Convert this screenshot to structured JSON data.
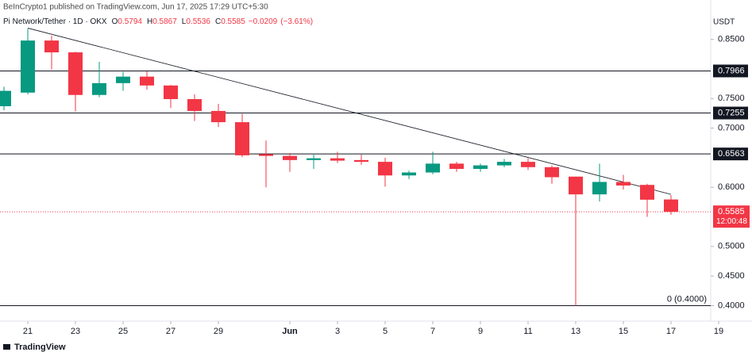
{
  "publisher": "BeInCrypto1 published on TradingView.com, Jun 17, 2025 17:29 UTC+5:30",
  "logo": "TradingView",
  "chart_data": {
    "type": "candlestick",
    "title": "Pi Network/Tether · 1D · OKX",
    "header_letters": [
      "O",
      "H",
      "L",
      "C"
    ],
    "header_values": [
      0.5794,
      0.5867,
      0.5536,
      0.5585
    ],
    "header_change": {
      "value": -0.0209,
      "label": "−0.0209"
    },
    "header_change_pct": {
      "value": -3.61,
      "label": "(−3.61%)"
    },
    "currency": "USDT",
    "x": [
      "2025-05-20",
      "2025-05-21",
      "2025-05-22",
      "2025-05-23",
      "2025-05-24",
      "2025-05-25",
      "2025-05-26",
      "2025-05-27",
      "2025-05-28",
      "2025-05-29",
      "2025-05-30",
      "2025-05-31",
      "2025-06-01",
      "2025-06-02",
      "2025-06-03",
      "2025-06-04",
      "2025-06-05",
      "2025-06-06",
      "2025-06-07",
      "2025-06-08",
      "2025-06-09",
      "2025-06-10",
      "2025-06-11",
      "2025-06-12",
      "2025-06-13",
      "2025-06-14",
      "2025-06-15",
      "2025-06-16",
      "2025-06-17"
    ],
    "open": [
      0.737,
      0.76,
      0.848,
      0.828,
      0.756,
      0.776,
      0.787,
      0.772,
      0.749,
      0.729,
      0.71,
      0.656,
      0.653,
      0.646,
      0.649,
      0.646,
      0.643,
      0.62,
      0.625,
      0.64,
      0.631,
      0.637,
      0.643,
      0.634,
      0.618,
      0.588,
      0.609,
      0.604,
      0.5794
    ],
    "high": [
      0.77,
      0.868,
      0.856,
      0.829,
      0.812,
      0.795,
      0.796,
      0.773,
      0.757,
      0.741,
      0.724,
      0.679,
      0.658,
      0.655,
      0.66,
      0.655,
      0.65,
      0.628,
      0.66,
      0.643,
      0.64,
      0.648,
      0.649,
      0.637,
      0.618,
      0.64,
      0.621,
      0.606,
      0.5867
    ],
    "low": [
      0.73,
      0.757,
      0.799,
      0.728,
      0.752,
      0.763,
      0.765,
      0.734,
      0.712,
      0.702,
      0.651,
      0.6,
      0.626,
      0.631,
      0.641,
      0.638,
      0.601,
      0.614,
      0.622,
      0.626,
      0.626,
      0.634,
      0.629,
      0.606,
      0.4,
      0.576,
      0.596,
      0.55,
      0.5536
    ],
    "close": [
      0.763,
      0.848,
      0.828,
      0.756,
      0.776,
      0.787,
      0.772,
      0.749,
      0.729,
      0.71,
      0.654,
      0.653,
      0.646,
      0.649,
      0.645,
      0.643,
      0.62,
      0.625,
      0.64,
      0.631,
      0.637,
      0.643,
      0.634,
      0.617,
      0.588,
      0.609,
      0.603,
      0.579,
      0.5585
    ],
    "up_color": "#089981",
    "down_color": "#f23645",
    "ylim": [
      0.3738,
      0.9165
    ],
    "yticks": [
      {
        "value": 0.85,
        "label": "0.8500"
      },
      {
        "value": 0.75,
        "label": "0.7500"
      },
      {
        "value": 0.7,
        "label": "0.7000"
      },
      {
        "value": 0.6,
        "label": "0.6000"
      },
      {
        "value": 0.5,
        "label": "0.5000"
      },
      {
        "value": 0.45,
        "label": "0.4500"
      },
      {
        "value": 0.4,
        "label": "0.4000"
      }
    ],
    "xlim": [
      "2025-05-20",
      "2025-06-20"
    ],
    "xticks": [
      {
        "value": "2025-05-21",
        "label": "21"
      },
      {
        "value": "2025-05-23",
        "label": "23"
      },
      {
        "value": "2025-05-25",
        "label": "25"
      },
      {
        "value": "2025-05-27",
        "label": "27"
      },
      {
        "value": "2025-05-29",
        "label": "29"
      },
      {
        "value": "2025-06-01",
        "label": "Jun"
      },
      {
        "value": "2025-06-03",
        "label": "3"
      },
      {
        "value": "2025-06-05",
        "label": "5"
      },
      {
        "value": "2025-06-07",
        "label": "7"
      },
      {
        "value": "2025-06-09",
        "label": "9"
      },
      {
        "value": "2025-06-11",
        "label": "11"
      },
      {
        "value": "2025-06-13",
        "label": "13"
      },
      {
        "value": "2025-06-15",
        "label": "15"
      },
      {
        "value": "2025-06-17",
        "label": "17"
      },
      {
        "value": "2025-06-19",
        "label": "19"
      }
    ],
    "levels": [
      {
        "value": 0.7966,
        "label": "0.7966"
      },
      {
        "value": 0.7255,
        "label": "0.7255"
      },
      {
        "value": 0.6563,
        "label": "0.6563"
      }
    ],
    "base_level": {
      "value": 0.4,
      "label": "0 (0.4000)"
    },
    "last": {
      "value": 0.5585,
      "label": "0.5585",
      "countdown": "12:00:48"
    },
    "trendline": {
      "x": [
        "2025-05-21",
        "2025-06-17"
      ],
      "y": [
        0.869,
        0.588
      ]
    }
  }
}
